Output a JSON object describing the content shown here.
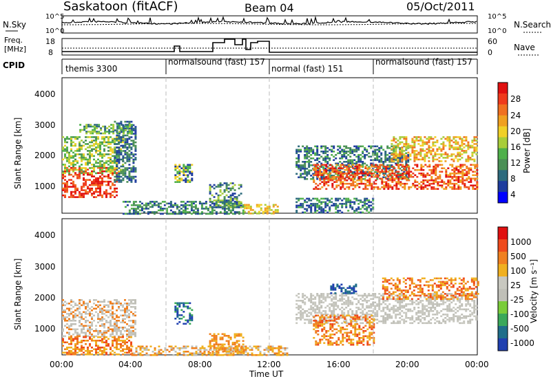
{
  "header": {
    "station": "Saskatoon (fitACF)",
    "beam": "Beam 04",
    "date": "05/Oct/2011"
  },
  "noise_panel": {
    "left_label": "N.Sky",
    "right_label": "N.Search",
    "y_ticks_left": [
      "10^5",
      "10^0"
    ],
    "y_ticks_right": [
      "10^5",
      "10^0"
    ]
  },
  "freq_panel": {
    "left_label_1": "Freq.",
    "left_label_2": "[MHz]",
    "right_label": "Nave",
    "y_ticks_left": [
      "18",
      "8"
    ],
    "y_ticks_right": [
      "60",
      "0"
    ]
  },
  "cpid_panel": {
    "label": "CPID",
    "segments": [
      {
        "text": "themis 3300",
        "start_h": 0
      },
      {
        "text": "normalsound (fast) 157",
        "start_h": 6
      },
      {
        "text": "normal (fast) 151",
        "start_h": 12
      },
      {
        "text": "normalsound (fast) 157",
        "start_h": 18
      }
    ]
  },
  "chart_data": [
    {
      "type": "heatmap",
      "name": "Power",
      "ylabel": "Slant Range [km]",
      "xlabel": "",
      "xlim_h": [
        0,
        24
      ],
      "ylim": [
        200,
        4600
      ],
      "y_ticks": [
        "1000",
        "2000",
        "3000",
        "4000"
      ],
      "colorbar_label": "Power [dB]",
      "colorbar_ticks": [
        "28",
        "24",
        "20",
        "16",
        "12",
        "8",
        "4"
      ],
      "colorbar_colors": [
        "#0000ff",
        "#1e3c9e",
        "#2d6a7d",
        "#4a8f55",
        "#4fb04a",
        "#a8cd3a",
        "#f0d028",
        "#f0a020",
        "#f07020",
        "#ef3a1c",
        "#e01010"
      ]
    },
    {
      "type": "heatmap",
      "name": "Velocity",
      "ylabel": "Slant Range [km]",
      "xlabel": "Time UT",
      "xlim_h": [
        0,
        24
      ],
      "ylim": [
        200,
        4600
      ],
      "y_ticks": [
        "1000",
        "2000",
        "3000",
        "4000"
      ],
      "x_ticks": [
        "00:00",
        "04:00",
        "08:00",
        "12:00",
        "16:00",
        "20:00",
        "00:00"
      ],
      "colorbar_label": "Velocity [m s⁻¹]",
      "colorbar_ticks": [
        "1000",
        "500",
        "100",
        "25",
        "-25",
        "-100",
        "-500",
        "-1000"
      ],
      "colorbar_colors": [
        "#2040b0",
        "#1f6e8a",
        "#3aa85a",
        "#7acc3a",
        "#c0c0b8",
        "#c8c8c0",
        "#f0b020",
        "#f08020",
        "#ef4a1c",
        "#e01010"
      ]
    }
  ]
}
